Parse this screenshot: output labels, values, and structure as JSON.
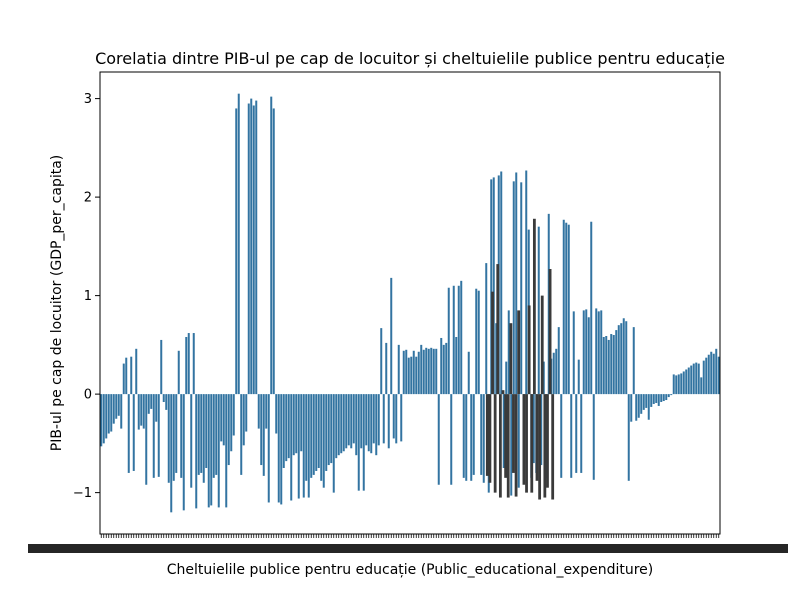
{
  "chart_data": {
    "type": "bar",
    "title": "Corelatia dintre PIB-ul pe cap de locuitor și cheltuielile publice pentru educație",
    "xlabel": "Cheltuielile publice pentru educație (Public_educational_expenditure)",
    "ylabel": "PIB-ul pe cap de locuitor (GDP_per_capita)",
    "ylim": [
      -1.42,
      3.27
    ],
    "yticks": [
      -1,
      0,
      1,
      2,
      3
    ],
    "grid": false,
    "legend": "none",
    "x_tick_labels_note": "x tick labels are dense, overlapping and illegible",
    "colors": {
      "bar": "#3274a1",
      "bar_dark": "#3a3a3a"
    },
    "values": [
      -0.53,
      -0.5,
      -0.45,
      -0.4,
      -0.38,
      -0.3,
      -0.25,
      -0.22,
      -0.35,
      0.31,
      0.37,
      -0.8,
      0.38,
      -0.78,
      0.46,
      -0.36,
      -0.32,
      -0.35,
      -0.92,
      -0.2,
      -0.15,
      -0.85,
      -0.28,
      -0.84,
      0.55,
      -0.08,
      -0.16,
      -0.9,
      -1.2,
      -0.88,
      -0.8,
      0.44,
      -0.85,
      -1.18,
      0.58,
      0.62,
      -0.95,
      0.62,
      -1.16,
      -0.82,
      -0.8,
      -0.9,
      -0.75,
      -1.15,
      -1.13,
      -0.85,
      -0.82,
      -1.15,
      -0.48,
      -0.52,
      -1.15,
      -0.72,
      -0.58,
      -0.42,
      2.9,
      3.05,
      -0.82,
      -0.52,
      -0.38,
      2.95,
      3.0,
      2.93,
      2.98,
      -0.35,
      -0.72,
      -0.83,
      -0.35,
      -1.1,
      3.02,
      2.9,
      -0.4,
      -1.1,
      -1.12,
      -0.75,
      -0.68,
      -0.65,
      -1.08,
      -0.62,
      -0.6,
      -1.06,
      -0.58,
      -1.05,
      -0.88,
      -1.05,
      -0.85,
      -0.82,
      -0.78,
      -0.75,
      -0.88,
      -0.95,
      -0.78,
      -0.72,
      -0.7,
      -1.0,
      -0.65,
      -0.62,
      -0.6,
      -0.58,
      -0.55,
      -0.52,
      -0.55,
      -0.5,
      -0.62,
      -0.98,
      -0.55,
      -0.98,
      -0.52,
      -0.58,
      -0.6,
      -0.5,
      -0.62,
      -0.52,
      0.67,
      -0.5,
      0.52,
      -0.55,
      1.18,
      -0.45,
      -0.5,
      0.5,
      -0.48,
      0.44,
      0.45,
      0.37,
      0.38,
      0.44,
      0.38,
      0.43,
      0.5,
      0.45,
      0.47,
      0.46,
      0.47,
      0.46,
      0.46,
      -0.92,
      0.57,
      0.5,
      0.52,
      1.08,
      -0.92,
      1.1,
      0.58,
      1.1,
      1.15,
      -0.85,
      -0.88,
      0.43,
      -0.88,
      -0.82,
      1.07,
      1.05,
      -0.82,
      -0.9,
      1.33,
      -1.0,
      2.18,
      2.2,
      0.72,
      2.22,
      2.26,
      -0.75,
      0.33,
      0.85,
      -1.03,
      2.16,
      2.25,
      -0.95,
      2.15,
      -0.78,
      2.27,
      1.67,
      -0.85,
      -0.7,
      -0.8,
      1.7,
      -0.72,
      0.33,
      -0.85,
      1.83,
      0.36,
      0.42,
      0.46,
      0.68,
      -0.85,
      1.77,
      1.74,
      1.72,
      -0.85,
      0.84,
      -0.8,
      0.35,
      -0.8,
      0.85,
      0.86,
      0.78,
      1.75,
      -0.87,
      0.87,
      0.84,
      0.85,
      0.58,
      0.59,
      0.55,
      0.61,
      0.6,
      0.65,
      0.7,
      0.72,
      0.77,
      0.74,
      -0.88,
      -0.28,
      0.68,
      -0.27,
      -0.24,
      -0.2,
      -0.16,
      -0.14,
      -0.26,
      -0.13,
      -0.1,
      -0.09,
      -0.12,
      -0.08,
      -0.07,
      -0.06,
      -0.03,
      -0.01,
      0.2,
      0.19,
      0.2,
      0.21,
      0.23,
      0.25,
      0.27,
      0.29,
      0.31,
      0.32,
      0.31,
      0.17,
      0.34,
      0.37,
      0.4,
      0.43,
      0.41,
      0.46,
      0.38
    ],
    "dark_overlay_values": [
      -0.83,
      -0.9,
      1.04,
      -1.0,
      1.32,
      -1.05,
      0.04,
      -0.85,
      -1.05,
      0.72,
      -0.8,
      -1.04,
      0.85,
      0.0,
      -0.92,
      -1.0,
      0.9,
      -1.0,
      1.78,
      -0.88,
      -1.07,
      1.0,
      -1.05,
      -0.95,
      1.27,
      -1.07
    ]
  }
}
